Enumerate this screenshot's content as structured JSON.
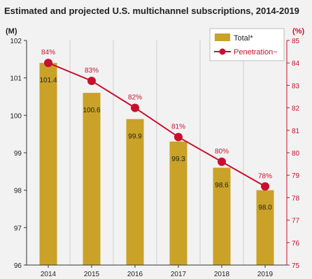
{
  "chart_data": {
    "type": "bar",
    "title": "Estimated and projected U.S. multichannel subscriptions, 2014-2019",
    "y_left_unit": "(M)",
    "y_right_unit": "(%)",
    "categories": [
      "2014",
      "2015",
      "2016",
      "2017",
      "2018",
      "2019"
    ],
    "series": [
      {
        "name": "Total*",
        "type": "bar",
        "axis": "left",
        "values": [
          101.4,
          100.6,
          99.9,
          99.3,
          98.6,
          98.0
        ],
        "labels": [
          "101.4",
          "100.6",
          "99.9",
          "99.3",
          "98.6",
          "98.0"
        ]
      },
      {
        "name": "Penetration~",
        "type": "line",
        "axis": "right",
        "values": [
          84.0,
          83.2,
          82.0,
          80.7,
          79.6,
          78.5
        ],
        "labels": [
          "84%",
          "83%",
          "82%",
          "81%",
          "80%",
          "78%"
        ]
      }
    ],
    "y_left": {
      "range": [
        96,
        102
      ],
      "ticks": [
        "96",
        "97",
        "98",
        "99",
        "100",
        "101",
        "102"
      ]
    },
    "y_right": {
      "range": [
        75,
        85
      ],
      "ticks": [
        "75",
        "76",
        "77",
        "78",
        "79",
        "80",
        "81",
        "82",
        "83",
        "84",
        "85"
      ]
    },
    "grid": "vertical",
    "legend_position": "top-right",
    "colors": {
      "bar": "#c9a227",
      "line": "#c8102e",
      "right_axis": "#c8102e",
      "text": "#222222",
      "grid": "#cfcfcf"
    }
  }
}
